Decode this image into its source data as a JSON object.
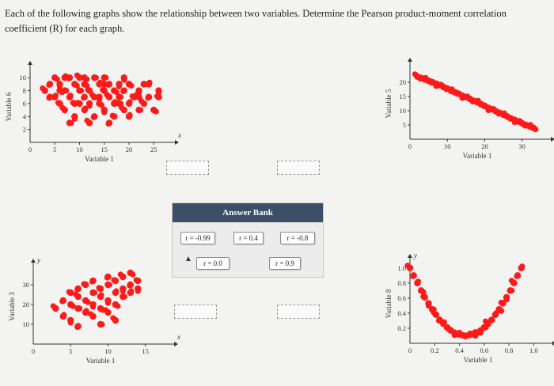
{
  "question": "Each of the following graphs show the relationship between two variables. Determine the Pearson product-moment correlation coefficient (R) for each graph.",
  "colors": {
    "points": "#ff1a1a",
    "bank_header": "#3d4f66"
  },
  "answer_bank": {
    "title": "Answer Bank",
    "options": [
      "r = -0.99",
      "r = 0.4",
      "r = -0.8",
      "r = 0.0",
      "r = 0.9"
    ]
  },
  "cursor_icon": "pointer-arrow-icon",
  "chart_data": [
    {
      "type": "scatter",
      "title": "",
      "xlabel": "Variable 1",
      "ylabel": "Variable 6",
      "x_axis_letter": "x",
      "xticks": [
        "0",
        "5",
        "10",
        "15",
        "20",
        "25"
      ],
      "yticks": [
        "2",
        "4",
        "6",
        "8",
        "10"
      ],
      "xlim": [
        0,
        28
      ],
      "ylim": [
        0,
        11
      ],
      "points": [
        [
          3,
          8
        ],
        [
          4,
          9
        ],
        [
          5,
          7
        ],
        [
          5,
          10
        ],
        [
          6,
          6
        ],
        [
          6,
          9
        ],
        [
          7,
          8
        ],
        [
          7,
          5
        ],
        [
          8,
          10
        ],
        [
          8,
          7
        ],
        [
          9,
          9
        ],
        [
          9,
          6
        ],
        [
          9,
          4
        ],
        [
          10,
          8
        ],
        [
          10,
          10
        ],
        [
          11,
          7
        ],
        [
          11,
          5
        ],
        [
          11,
          9
        ],
        [
          12,
          8
        ],
        [
          12,
          6
        ],
        [
          13,
          10
        ],
        [
          13,
          7
        ],
        [
          13,
          4
        ],
        [
          14,
          9
        ],
        [
          14,
          6
        ],
        [
          15,
          8
        ],
        [
          15,
          5
        ],
        [
          15,
          10
        ],
        [
          16,
          7
        ],
        [
          16,
          9
        ],
        [
          17,
          6
        ],
        [
          17,
          8
        ],
        [
          17,
          4
        ],
        [
          18,
          9
        ],
        [
          18,
          7
        ],
        [
          19,
          5
        ],
        [
          19,
          8
        ],
        [
          20,
          6
        ],
        [
          20,
          9
        ],
        [
          21,
          7
        ],
        [
          22,
          8
        ],
        [
          22,
          5
        ],
        [
          23,
          6
        ],
        [
          24,
          7
        ],
        [
          24,
          9
        ],
        [
          25,
          5
        ],
        [
          26,
          7
        ],
        [
          26,
          8
        ],
        [
          8,
          3
        ],
        [
          12,
          3
        ],
        [
          16,
          3
        ],
        [
          20,
          4
        ],
        [
          6,
          8
        ],
        [
          10,
          6
        ],
        [
          14,
          7
        ],
        [
          18,
          6
        ],
        [
          22,
          7
        ],
        [
          4,
          7
        ],
        [
          7,
          10
        ],
        [
          11,
          10
        ],
        [
          15,
          9
        ],
        [
          19,
          10
        ],
        [
          23,
          9
        ]
      ]
    },
    {
      "type": "scatter",
      "title": "",
      "xlabel": "Variable 1",
      "ylabel": "Variable 5",
      "x_axis_letter": "x",
      "xticks": [
        "0",
        "10",
        "20",
        "30"
      ],
      "yticks": [
        "5",
        "10",
        "15",
        "20"
      ],
      "xlim": [
        0,
        36
      ],
      "ylim": [
        0,
        25
      ],
      "points": [
        [
          2,
          22
        ],
        [
          3,
          21.5
        ],
        [
          4,
          21
        ],
        [
          5,
          20.5
        ],
        [
          6,
          20
        ],
        [
          7,
          19.5
        ],
        [
          8,
          19
        ],
        [
          9,
          18.3
        ],
        [
          10,
          17.8
        ],
        [
          11,
          17
        ],
        [
          12,
          16.5
        ],
        [
          13,
          16
        ],
        [
          14,
          15.3
        ],
        [
          15,
          14.8
        ],
        [
          16,
          14.2
        ],
        [
          17,
          13.5
        ],
        [
          18,
          13
        ],
        [
          19,
          12.3
        ],
        [
          20,
          11.7
        ],
        [
          21,
          11
        ],
        [
          22,
          10.5
        ],
        [
          23,
          9.8
        ],
        [
          24,
          9.2
        ],
        [
          25,
          8.6
        ],
        [
          26,
          8
        ],
        [
          27,
          7.3
        ],
        [
          28,
          6.8
        ],
        [
          29,
          6.2
        ],
        [
          30,
          5.6
        ],
        [
          31,
          5
        ],
        [
          32,
          4.5
        ],
        [
          33,
          4
        ]
      ]
    },
    {
      "type": "scatter",
      "title": "",
      "xlabel": "Variable 1",
      "ylabel": "Variable 3",
      "x_axis_letter": "x",
      "y_axis_letter": "y",
      "xticks": [
        "0",
        "5",
        "10",
        "15"
      ],
      "yticks": [
        "10",
        "20",
        "30"
      ],
      "xlim": [
        0,
        18
      ],
      "ylim": [
        0,
        38
      ],
      "points": [
        [
          3,
          18
        ],
        [
          4,
          22
        ],
        [
          4,
          14
        ],
        [
          5,
          20
        ],
        [
          5,
          26
        ],
        [
          5,
          12
        ],
        [
          6,
          18
        ],
        [
          6,
          24
        ],
        [
          6,
          28
        ],
        [
          7,
          16
        ],
        [
          7,
          22
        ],
        [
          7,
          30
        ],
        [
          8,
          20
        ],
        [
          8,
          26
        ],
        [
          8,
          14
        ],
        [
          8,
          32
        ],
        [
          9,
          24
        ],
        [
          9,
          18
        ],
        [
          9,
          28
        ],
        [
          10,
          22
        ],
        [
          10,
          30
        ],
        [
          10,
          16
        ],
        [
          10,
          34
        ],
        [
          11,
          26
        ],
        [
          11,
          20
        ],
        [
          11,
          32
        ],
        [
          12,
          28
        ],
        [
          12,
          24
        ],
        [
          12,
          34
        ],
        [
          13,
          30
        ],
        [
          13,
          26
        ],
        [
          13,
          36
        ],
        [
          14,
          32
        ],
        [
          14,
          28
        ],
        [
          9,
          10
        ],
        [
          11,
          12
        ],
        [
          6,
          9
        ]
      ]
    },
    {
      "type": "scatter",
      "title": "",
      "xlabel": "Variable 1",
      "ylabel": "Variable 8",
      "x_axis_letter": "x",
      "y_axis_letter": "y",
      "xticks": [
        "0",
        "0.2",
        "0.4",
        "0.6",
        "0.8",
        "1.0"
      ],
      "yticks": [
        "0.2",
        "0.4",
        "0.6",
        "0.8",
        "1.0"
      ],
      "xlim": [
        0,
        1.1
      ],
      "ylim": [
        0,
        1.05
      ],
      "points": [
        [
          0.0,
          1.0
        ],
        [
          0.03,
          0.9
        ],
        [
          0.06,
          0.8
        ],
        [
          0.09,
          0.7
        ],
        [
          0.12,
          0.61
        ],
        [
          0.15,
          0.53
        ],
        [
          0.18,
          0.45
        ],
        [
          0.21,
          0.38
        ],
        [
          0.24,
          0.31
        ],
        [
          0.27,
          0.26
        ],
        [
          0.3,
          0.21
        ],
        [
          0.33,
          0.17
        ],
        [
          0.36,
          0.14
        ],
        [
          0.39,
          0.12
        ],
        [
          0.42,
          0.11
        ],
        [
          0.45,
          0.1
        ],
        [
          0.48,
          0.11
        ],
        [
          0.51,
          0.12
        ],
        [
          0.54,
          0.14
        ],
        [
          0.57,
          0.17
        ],
        [
          0.6,
          0.21
        ],
        [
          0.63,
          0.26
        ],
        [
          0.66,
          0.31
        ],
        [
          0.69,
          0.38
        ],
        [
          0.72,
          0.45
        ],
        [
          0.75,
          0.53
        ],
        [
          0.78,
          0.61
        ],
        [
          0.81,
          0.7
        ],
        [
          0.84,
          0.8
        ],
        [
          0.87,
          0.9
        ],
        [
          0.9,
          1.0
        ]
      ]
    }
  ]
}
